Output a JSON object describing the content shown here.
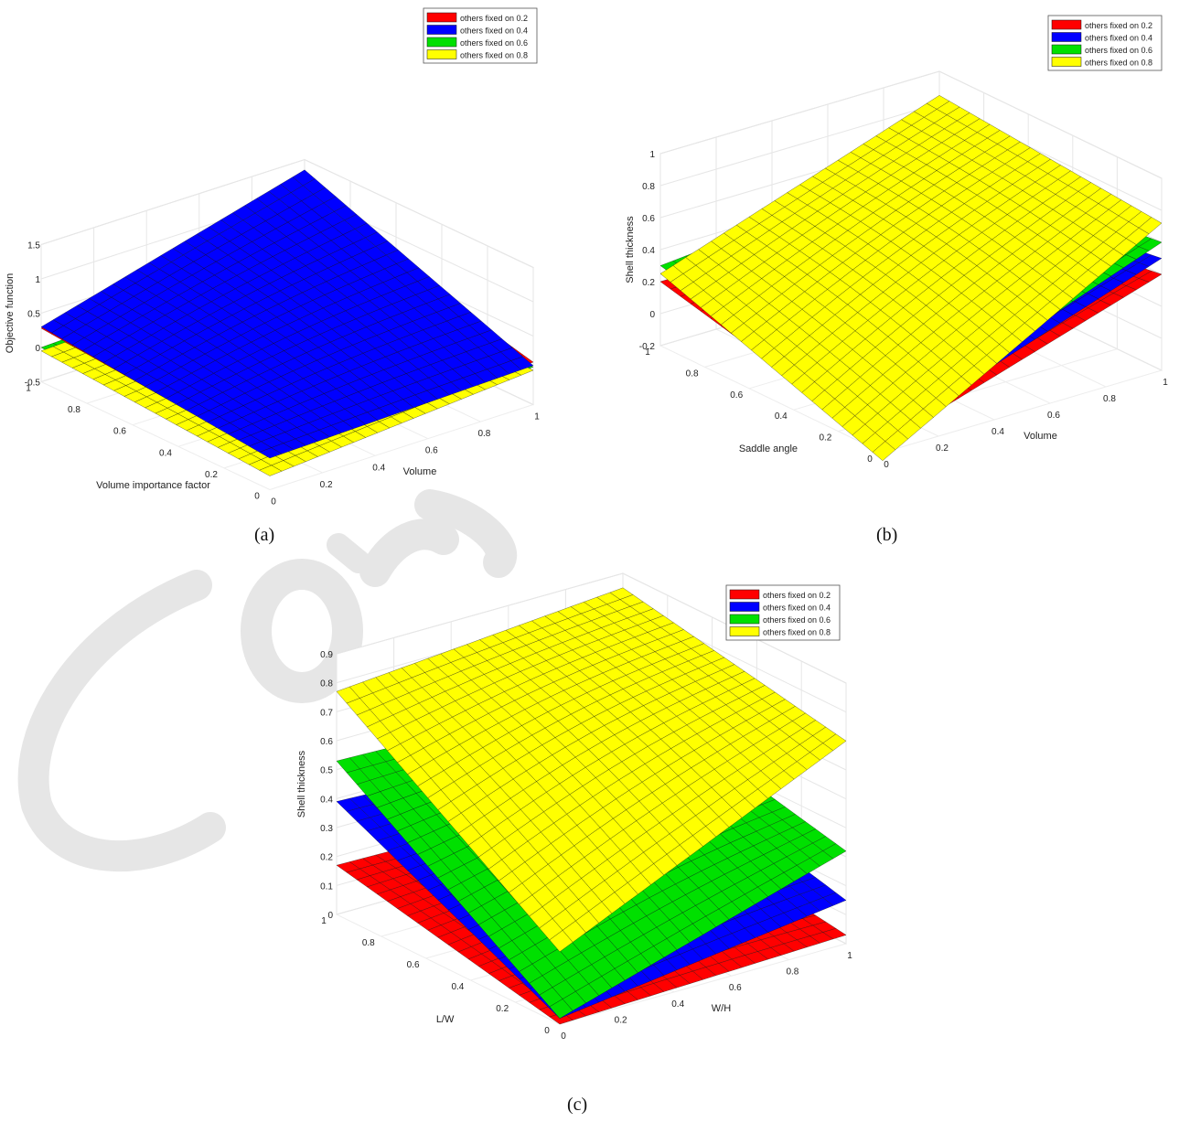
{
  "figure": {
    "captions": [
      "(a)",
      "(b)",
      "(c)"
    ]
  },
  "chart_data": [
    {
      "type": "surface3d",
      "panel": "(a)",
      "xlabel": "Volume",
      "ylabel": "Volume importance factor",
      "zlabel": "Objective function",
      "xlim": [
        0,
        1
      ],
      "ylim": [
        0,
        1
      ],
      "zlim": [
        -0.5,
        1.5
      ],
      "x_ticks": [
        "0",
        "0.2",
        "0.4",
        "0.6",
        "0.8",
        "1"
      ],
      "y_ticks": [
        "0",
        "0.2",
        "0.4",
        "0.6",
        "0.8",
        "1"
      ],
      "z_ticks": [
        "-0.5",
        "0",
        "0.5",
        "1",
        "1.5"
      ],
      "grid": true,
      "legend_position": "top-right",
      "series": [
        {
          "name": "others fixed on 0.2",
          "color": "#ff0000",
          "corners_z": [
            0.28,
            0.12,
            -0.02,
            0.95
          ]
        },
        {
          "name": "others fixed on 0.4",
          "color": "#0000ff",
          "corners_z": [
            0.3,
            0.07,
            -0.04,
            1.35
          ]
        },
        {
          "name": "others fixed on 0.6",
          "color": "#00e000",
          "corners_z": [
            0.0,
            0.05,
            -0.25,
            0.15
          ]
        },
        {
          "name": "others fixed on 0.8",
          "color": "#ffff00",
          "corners_z": [
            -0.05,
            0.0,
            -0.3,
            0.1
          ]
        }
      ]
    },
    {
      "type": "surface3d",
      "panel": "(b)",
      "xlabel": "Volume",
      "ylabel": "Saddle angle",
      "zlabel": "Shell thickness",
      "xlim": [
        0,
        1
      ],
      "ylim": [
        0,
        1
      ],
      "zlim": [
        -0.2,
        1
      ],
      "x_ticks": [
        "0",
        "0.2",
        "0.4",
        "0.6",
        "0.8",
        "1"
      ],
      "y_ticks": [
        "0",
        "0.2",
        "0.4",
        "0.6",
        "0.8",
        "1"
      ],
      "z_ticks": [
        "-0.2",
        "0",
        "0.2",
        "0.4",
        "0.6",
        "0.8",
        "1"
      ],
      "grid": true,
      "legend_position": "top-right",
      "series": [
        {
          "name": "others fixed on 0.2",
          "color": "#ff0000",
          "corners_z": [
            0.2,
            0.4,
            -0.15,
            0.2
          ]
        },
        {
          "name": "others fixed on 0.4",
          "color": "#0000ff",
          "corners_z": [
            0.25,
            0.5,
            -0.1,
            0.3
          ]
        },
        {
          "name": "others fixed on 0.6",
          "color": "#00e000",
          "corners_z": [
            0.3,
            0.6,
            -0.05,
            0.45
          ]
        },
        {
          "name": "others fixed on 0.8",
          "color": "#ffff00",
          "corners_z": [
            0.25,
            0.72,
            -0.25,
            0.85
          ]
        }
      ]
    },
    {
      "type": "surface3d",
      "panel": "(c)",
      "xlabel": "W/H",
      "ylabel": "L/W",
      "zlabel": "Shell thickness",
      "xlim": [
        0,
        1
      ],
      "ylim": [
        0,
        1
      ],
      "zlim": [
        0,
        0.9
      ],
      "x_ticks": [
        "0",
        "0.2",
        "0.4",
        "0.6",
        "0.8",
        "1"
      ],
      "y_ticks": [
        "0",
        "0.2",
        "0.4",
        "0.6",
        "0.8",
        "1"
      ],
      "z_ticks": [
        "0",
        "0.1",
        "0.2",
        "0.3",
        "0.4",
        "0.5",
        "0.6",
        "0.7",
        "0.8",
        "0.9"
      ],
      "grid": true,
      "legend_position": "top-right",
      "series": [
        {
          "name": "others fixed on 0.2",
          "color": "#ff0000",
          "corners_z": [
            0.17,
            0.03,
            0.0,
            0.15
          ]
        },
        {
          "name": "others fixed on 0.4",
          "color": "#0000ff",
          "corners_z": [
            0.39,
            0.15,
            0.02,
            0.35
          ]
        },
        {
          "name": "others fixed on 0.6",
          "color": "#00e000",
          "corners_z": [
            0.53,
            0.32,
            0.02,
            0.5
          ]
        },
        {
          "name": "others fixed on 0.8",
          "color": "#ffff00",
          "corners_z": [
            0.77,
            0.7,
            0.25,
            0.85
          ]
        }
      ]
    }
  ]
}
